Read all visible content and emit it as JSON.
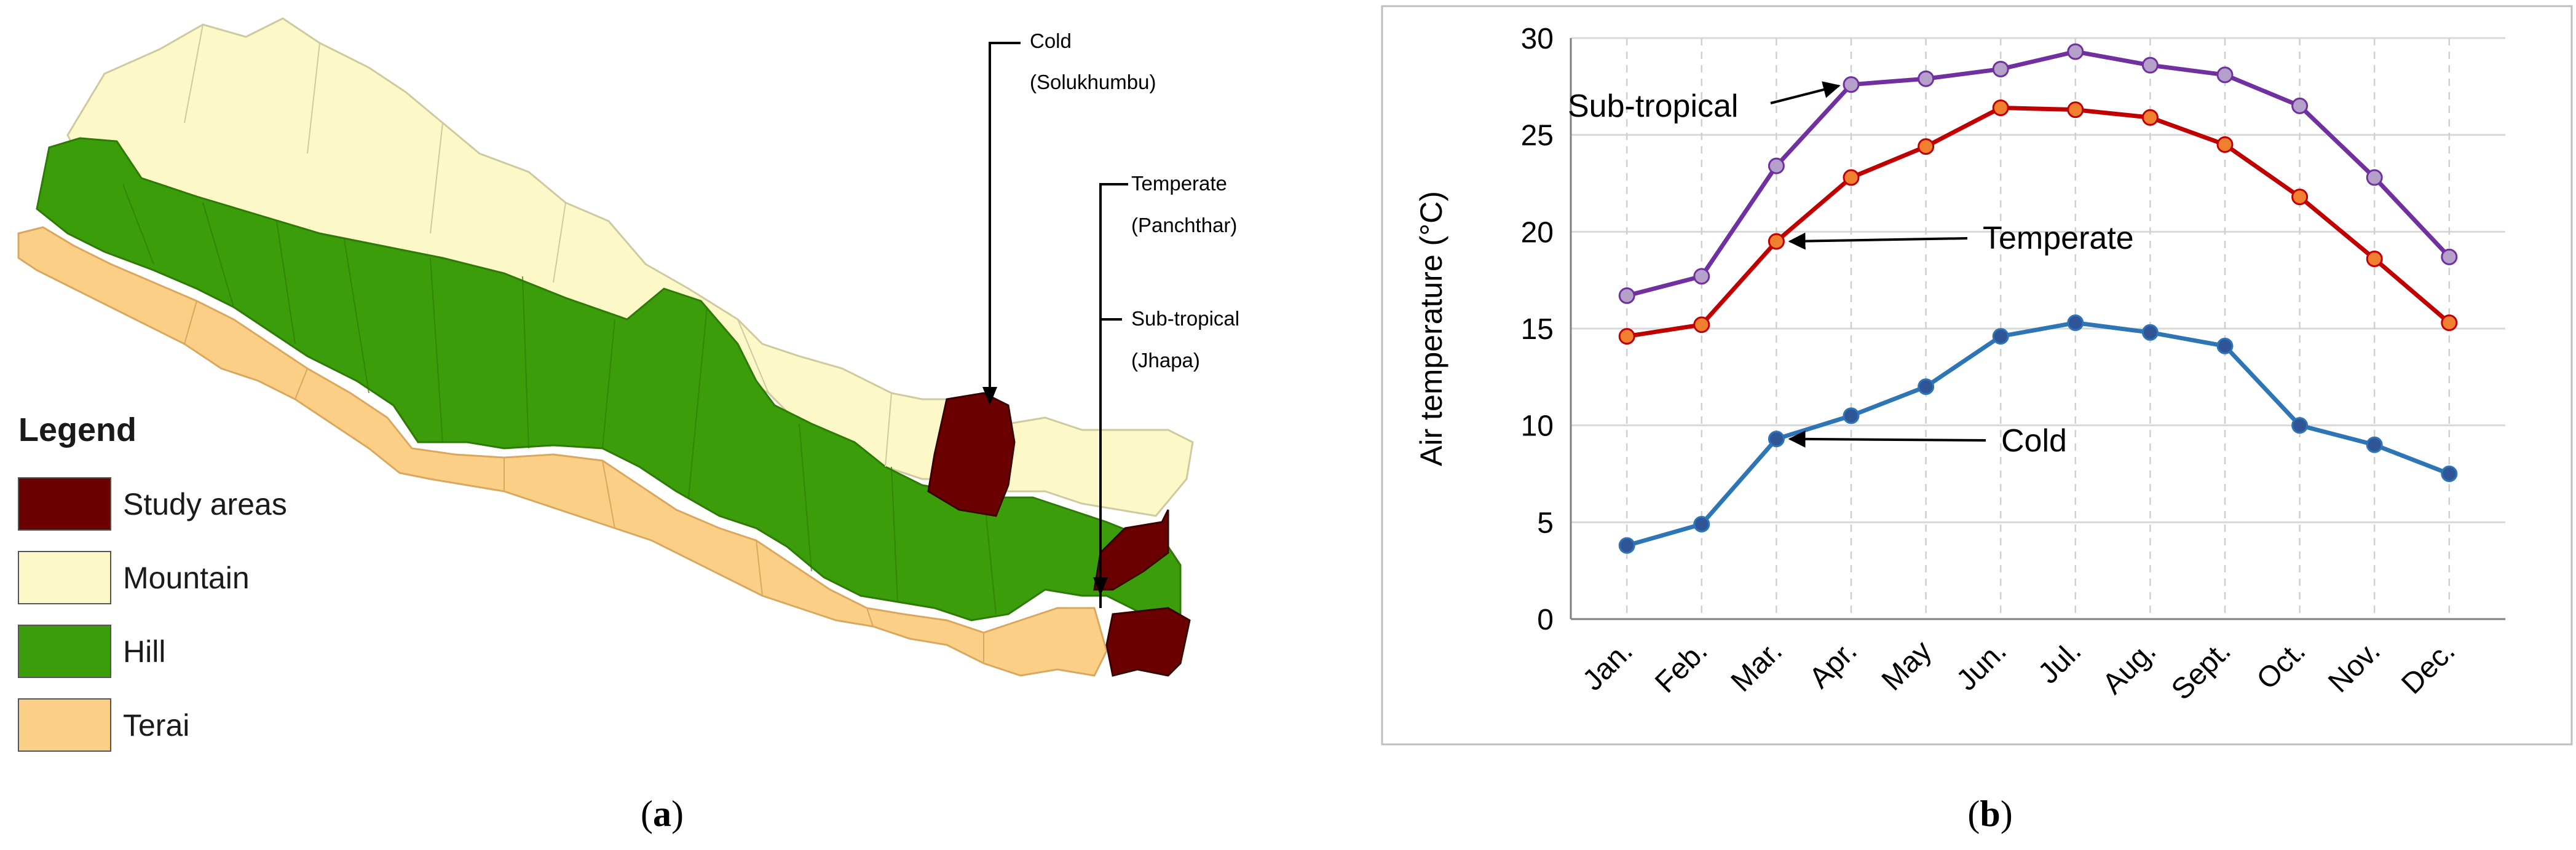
{
  "panels": {
    "a": {
      "caption_open": "(",
      "caption_letter": "a",
      "caption_close": ")",
      "legend": {
        "title": "Legend",
        "items": [
          {
            "label": "Study areas",
            "color": "#6a0000"
          },
          {
            "label": "Mountain",
            "color": "#fdf8c8"
          },
          {
            "label": "Hill",
            "color": "#3c9d0a"
          },
          {
            "label": "Terai",
            "color": "#fbcf86"
          }
        ]
      },
      "callouts": [
        {
          "line1": "Cold",
          "line2": "(Solukhumbu)"
        },
        {
          "line1": "Temperate",
          "line2": "(Panchthar)"
        },
        {
          "line1": "Sub-tropical",
          "line2": "(Jhapa)"
        }
      ]
    },
    "b": {
      "caption_open": "(",
      "caption_letter": "b",
      "caption_close": ")"
    }
  },
  "chart_data": {
    "type": "line",
    "title": "",
    "xlabel": "",
    "ylabel": "Air temperature (°C)",
    "ylim": [
      0,
      30
    ],
    "yticks": [
      0,
      5,
      10,
      15,
      20,
      25,
      30
    ],
    "categories": [
      "Jan.",
      "Feb.",
      "Mar.",
      "Apr.",
      "May",
      "Jun.",
      "Jul.",
      "Aug.",
      "Sept.",
      "Oct.",
      "Nov.",
      "Dec."
    ],
    "grid": {
      "horizontal": "solid",
      "vertical": "dashed"
    },
    "series": [
      {
        "name": "Sub-tropical",
        "color": "#7030a0",
        "marker_color": "#b4a0c8",
        "values": [
          16.7,
          17.7,
          23.4,
          27.6,
          27.9,
          28.4,
          29.3,
          28.6,
          28.1,
          26.5,
          22.8,
          18.7
        ]
      },
      {
        "name": "Temperate",
        "color": "#c00000",
        "marker_color": "#f08030",
        "values": [
          14.6,
          15.2,
          19.5,
          22.8,
          24.4,
          26.4,
          26.3,
          25.9,
          24.5,
          21.8,
          18.6,
          15.3
        ]
      },
      {
        "name": "Cold",
        "color": "#2e75b6",
        "marker_color": "#2f5597",
        "values": [
          3.8,
          4.9,
          9.3,
          10.5,
          12.0,
          14.6,
          15.3,
          14.8,
          14.1,
          10.0,
          9.0,
          7.5
        ]
      }
    ],
    "annotations": [
      {
        "text": "Sub-tropical",
        "series": "Sub-tropical",
        "point_index": 3
      },
      {
        "text": "Temperate",
        "series": "Temperate",
        "point_index": 2
      },
      {
        "text": "Cold",
        "series": "Cold",
        "point_index": 2
      }
    ]
  }
}
